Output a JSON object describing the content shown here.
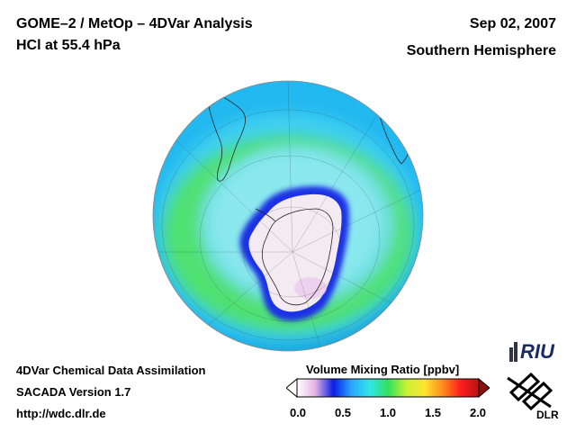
{
  "header": {
    "title_line1": "GOME–2 / MetOp – 4DVar Analysis",
    "title_line2": "HCl at 55.4 hPa",
    "date": "Sep 02, 2007",
    "region": "Southern Hemisphere"
  },
  "footer": {
    "line1": "4DVar Chemical Data Assimilation",
    "line2": "SACADA Version 1.7",
    "line3": "http://wdc.dlr.de"
  },
  "colorbar": {
    "title": "Volume Mixing Ratio [ppbv]",
    "ticks": [
      "0.0",
      "0.5",
      "1.0",
      "1.5",
      "2.0"
    ],
    "range": [
      0.0,
      2.0
    ],
    "colors": [
      "#ffffff",
      "#e6b3e6",
      "#0a1ee6",
      "#2aa8ff",
      "#30e6e6",
      "#30e060",
      "#c8f032",
      "#ffe632",
      "#ff8c1e",
      "#ff1e1e",
      "#b41414"
    ]
  },
  "logos": {
    "riu": "RIU",
    "dlr": "DLR"
  },
  "map": {
    "projection": "orthographic",
    "hemisphere": "south",
    "palette": {
      "outer": "#1ec8f0",
      "ring_green": "#40e070",
      "ring_cyan": "#70e0e0",
      "vortex_edge": "#1428e6",
      "vortex_inner": "#f4eaf2"
    }
  }
}
